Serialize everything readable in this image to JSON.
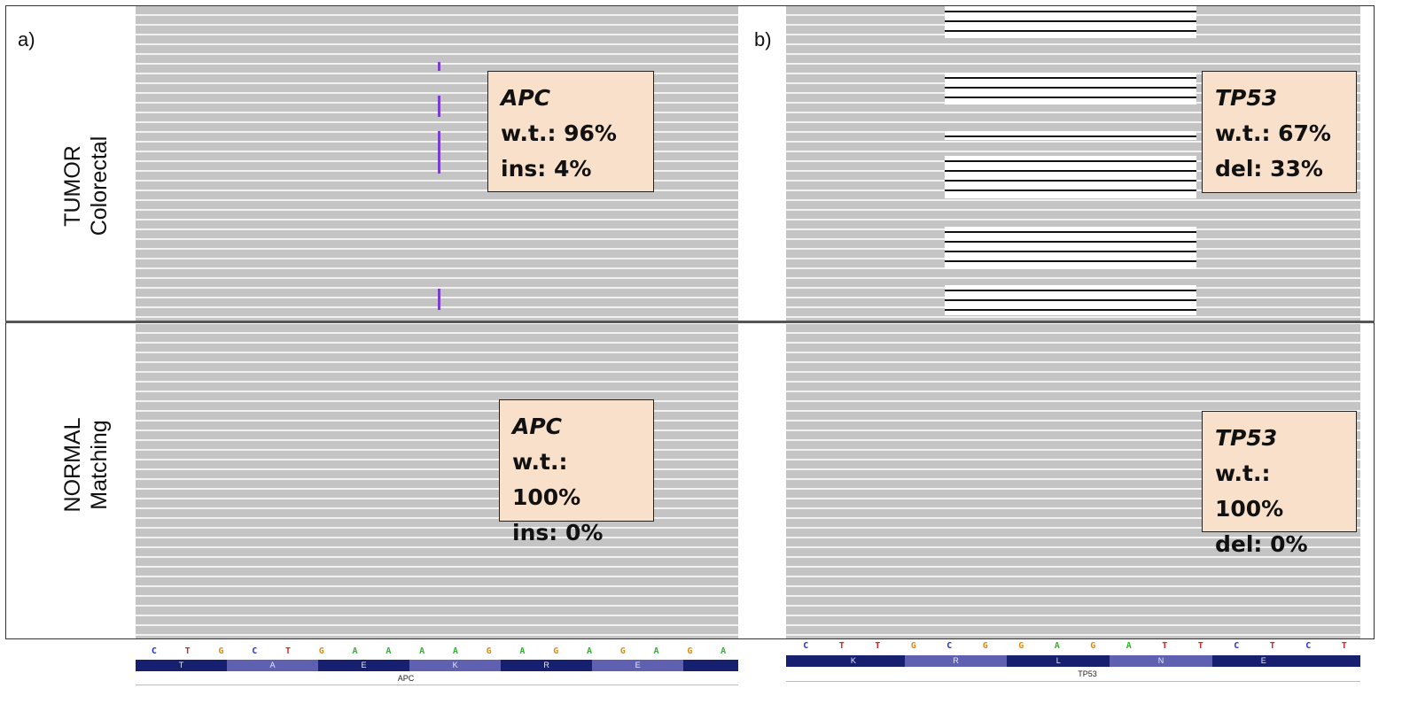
{
  "panels": {
    "a": {
      "letter": "a)"
    },
    "b": {
      "letter": "b)"
    }
  },
  "rows": {
    "tumor": {
      "line1": "TUMOR",
      "line2": "Colorectal"
    },
    "normal": {
      "line1": "NORMAL",
      "line2": "Matching"
    }
  },
  "boxes": {
    "apc_tumor": {
      "gene": "APC",
      "wt": "w.t.: 96%",
      "mut": "ins: 4%"
    },
    "apc_normal": {
      "gene": "APC",
      "wt": "w.t.: 100%",
      "mut": "ins: 0%"
    },
    "tp53_tumor": {
      "gene": "TP53",
      "wt": "w.t.: 67%",
      "mut": "del: 33%"
    },
    "tp53_normal": {
      "gene": "TP53",
      "wt": "w.t.: 100%",
      "mut": "del: 0%"
    }
  },
  "tracks": {
    "apc": {
      "bases": [
        "C",
        "T",
        "G",
        "C",
        "T",
        "G",
        "A",
        "A",
        "A",
        "A",
        "G",
        "A",
        "G",
        "A",
        "G",
        "A",
        "G",
        "A"
      ],
      "amino": [
        "T",
        "A",
        "E",
        "K",
        "R",
        "E"
      ],
      "gene": "APC"
    },
    "tp53": {
      "bases": [
        "C",
        "T",
        "T",
        "G",
        "C",
        "G",
        "G",
        "A",
        "G",
        "A",
        "T",
        "T",
        "C",
        "T",
        "C",
        "T"
      ],
      "amino": [
        "K",
        "R",
        "L",
        "N",
        "E"
      ],
      "gene": "TP53"
    }
  },
  "colors": {
    "A": "#22bb22",
    "C": "#2233dd",
    "G": "#e08a10",
    "T": "#dd2222"
  }
}
